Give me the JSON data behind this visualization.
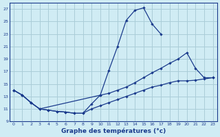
{
  "background_color": "#d0ecf4",
  "grid_color": "#aacdd8",
  "line_color": "#1a3a8c",
  "xlabel": "Graphe des températures (°c)",
  "xlabel_color": "#1a3a8c",
  "ylim": [
    9,
    28
  ],
  "xlim": [
    -0.5,
    23.5
  ],
  "yticks": [
    9,
    11,
    13,
    15,
    17,
    19,
    21,
    23,
    25,
    27
  ],
  "xticks": [
    0,
    1,
    2,
    3,
    4,
    5,
    6,
    7,
    8,
    9,
    10,
    11,
    12,
    13,
    14,
    15,
    16,
    17,
    18,
    19,
    20,
    21,
    22,
    23
  ],
  "line1_x": [
    0,
    1,
    2,
    3,
    4,
    5,
    6,
    7,
    8,
    9,
    10,
    11,
    12,
    13,
    14,
    15,
    16,
    17
  ],
  "line1_y": [
    14.0,
    13.2,
    12.0,
    11.0,
    10.8,
    10.6,
    10.5,
    10.3,
    10.3,
    11.8,
    13.2,
    17.2,
    21.0,
    25.2,
    26.8,
    27.2,
    24.6,
    23.0
  ],
  "line2_x": [
    0,
    1,
    2,
    3,
    10,
    11,
    12,
    13,
    14,
    15,
    16,
    17,
    18,
    19,
    20,
    21,
    22,
    23
  ],
  "line2_y": [
    14.0,
    13.2,
    12.0,
    11.0,
    13.2,
    13.5,
    14.0,
    14.5,
    15.2,
    16.0,
    16.8,
    17.5,
    18.3,
    19.0,
    20.0,
    17.5,
    16.0,
    16.0
  ],
  "line3_x": [
    0,
    1,
    2,
    3,
    4,
    5,
    6,
    7,
    8,
    9,
    10,
    11,
    12,
    13,
    14,
    15,
    16,
    17,
    18,
    19,
    20,
    21,
    22,
    23
  ],
  "line3_y": [
    14.0,
    13.2,
    12.0,
    11.0,
    10.8,
    10.6,
    10.5,
    10.3,
    10.3,
    11.0,
    11.5,
    12.0,
    12.5,
    13.0,
    13.5,
    14.0,
    14.5,
    14.8,
    15.2,
    15.5,
    15.5,
    15.6,
    15.8,
    16.0
  ]
}
